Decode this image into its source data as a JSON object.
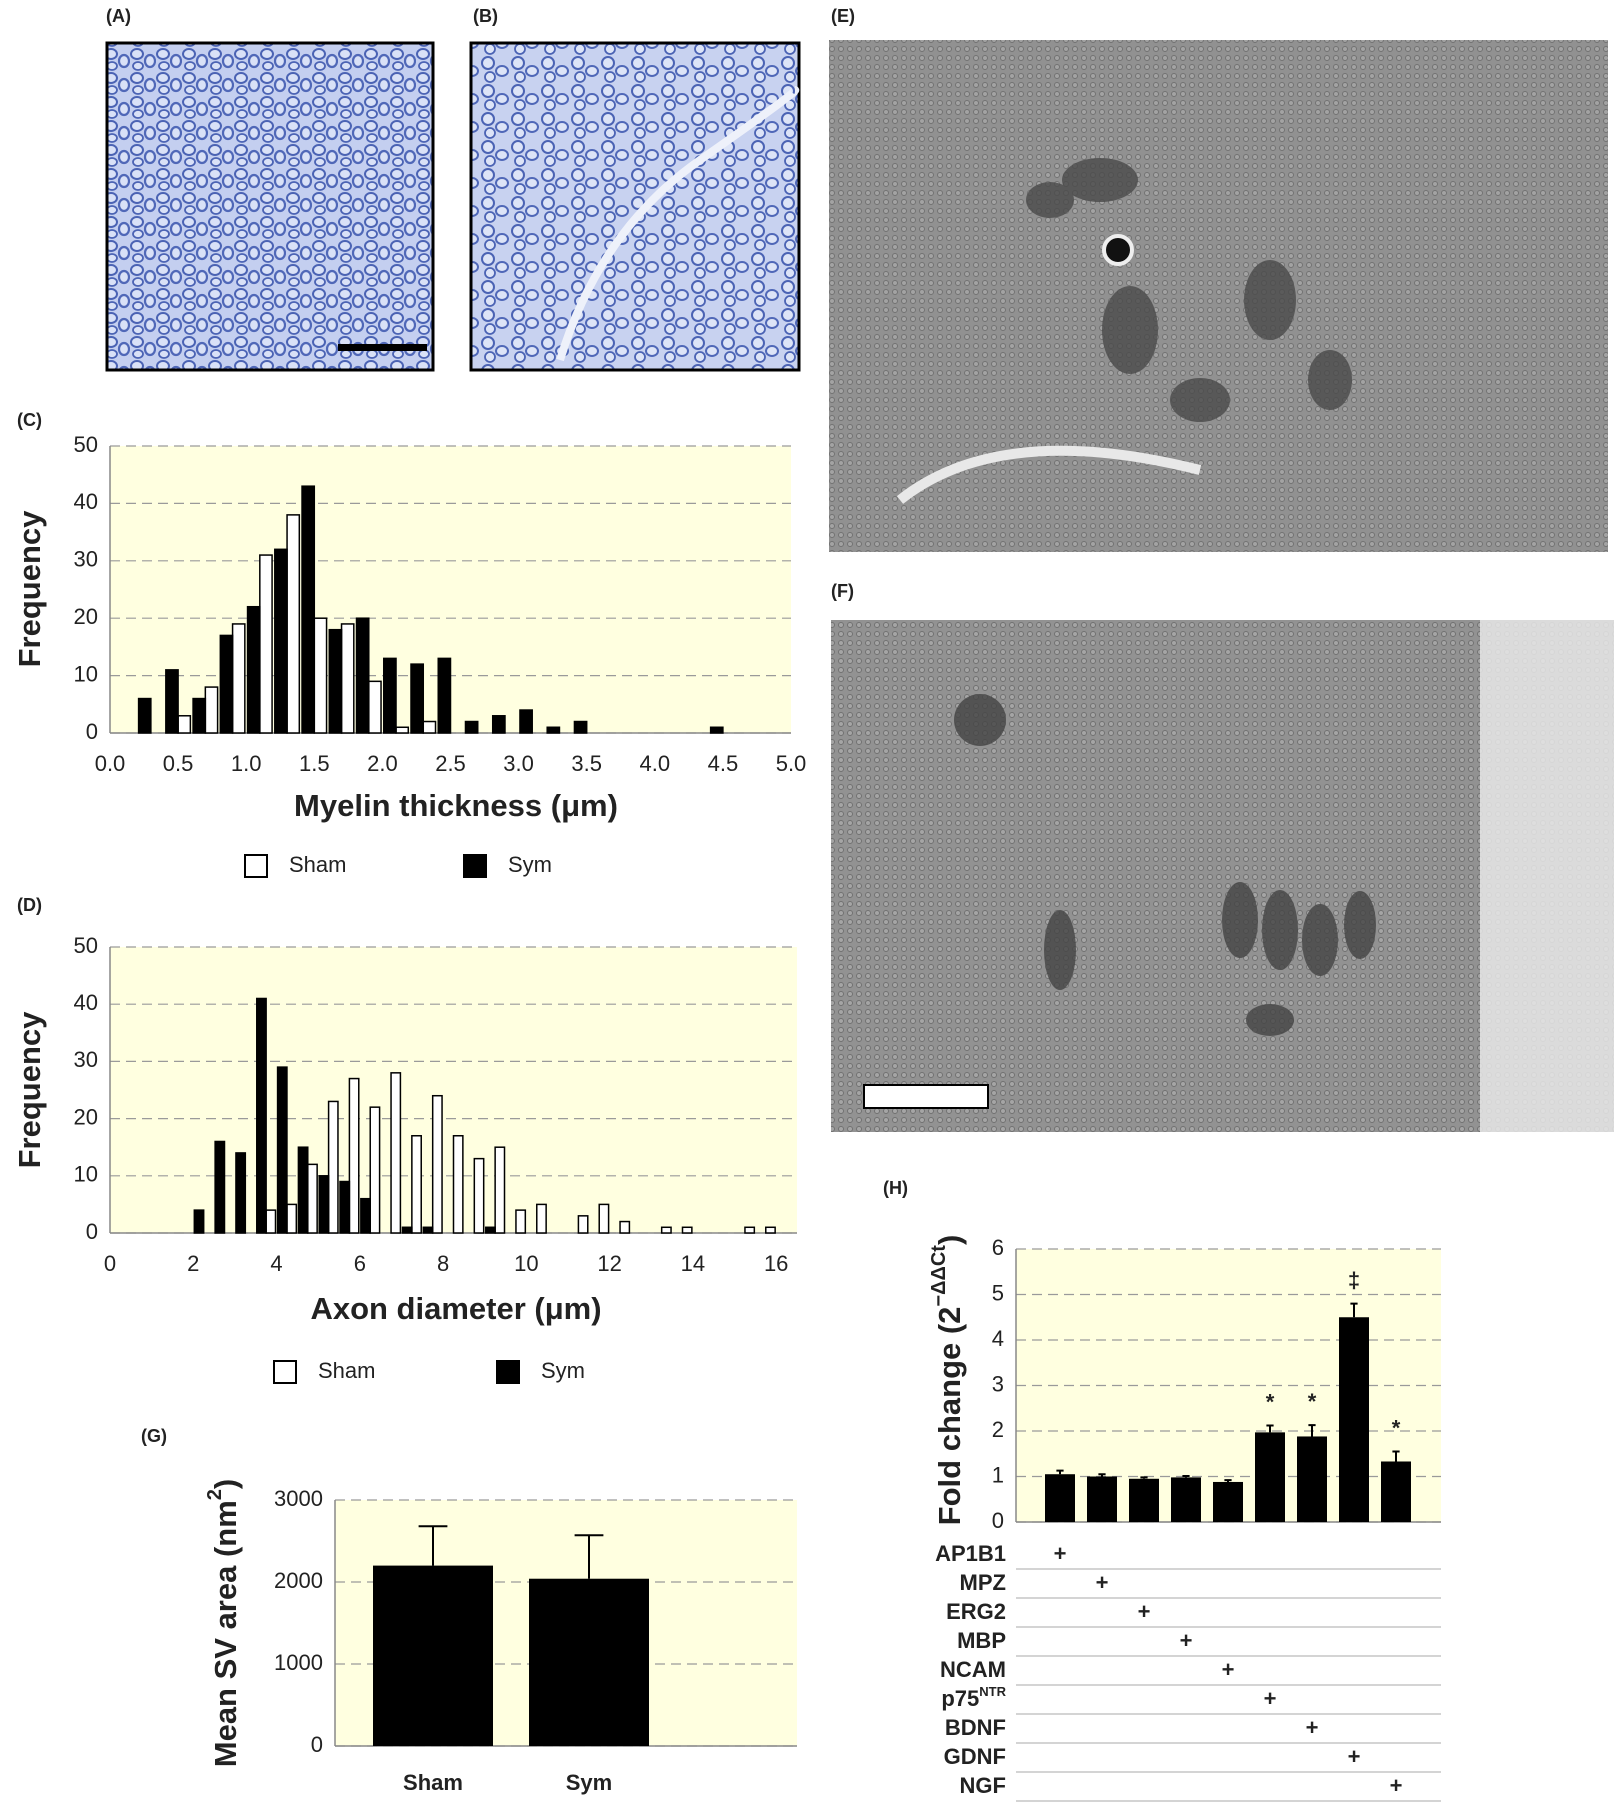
{
  "image_panels": [
    "(A)",
    "(B)",
    "(E)",
    "(F)"
  ],
  "chart_data": [
    {
      "type": "histogram",
      "label": "(C)",
      "xlabel": "Myelin thickness (μm)",
      "ylabel": "Frequency",
      "bins": [
        0.2,
        0.4,
        0.6,
        0.8,
        1.0,
        1.2,
        1.4,
        1.6,
        1.8,
        2.0,
        2.2,
        2.4,
        2.6,
        2.8,
        3.0,
        3.2,
        3.4,
        3.6,
        3.8,
        4.0,
        4.2,
        4.4,
        4.6
      ],
      "series": [
        {
          "name": "Sham",
          "color": "#ffffff",
          "values": [
            0,
            3,
            8,
            19,
            31,
            38,
            20,
            19,
            9,
            1,
            2,
            0,
            0,
            0,
            0,
            0,
            0,
            0,
            0,
            0,
            0,
            0
          ]
        },
        {
          "name": "Sym",
          "color": "#000000",
          "values": [
            6,
            11,
            6,
            17,
            22,
            32,
            43,
            18,
            20,
            13,
            12,
            13,
            2,
            3,
            4,
            1,
            2,
            0,
            0,
            0,
            0,
            1
          ]
        }
      ],
      "xlim": [
        0,
        5
      ],
      "ylim": [
        0,
        50
      ],
      "xticks": [
        {
          "value": 0,
          "label": "0.0"
        },
        0.5,
        {
          "value": 1,
          "label": "1.0"
        },
        1.5,
        {
          "value": 2,
          "label": "2.0"
        },
        2.5,
        {
          "value": 3,
          "label": "3.0"
        },
        3.5,
        {
          "value": 4,
          "label": "4.0"
        },
        4.5,
        {
          "value": 5,
          "label": "5.0"
        }
      ],
      "yticks": [
        0,
        10,
        20,
        30,
        40,
        50
      ],
      "grid": true,
      "background": "#ffffe0"
    },
    {
      "type": "histogram",
      "label": "(D)",
      "xlabel": "Axon diameter (μm)",
      "ylabel": "Frequency",
      "bins": [
        2.0,
        2.5,
        3.0,
        3.5,
        4.0,
        4.5,
        5.0,
        5.5,
        6.0,
        6.5,
        7.0,
        7.5,
        8.0,
        8.5,
        9.0,
        9.5,
        10.0,
        10.5,
        11.0,
        11.5,
        12.0,
        12.5,
        13.0,
        13.5,
        14.0,
        14.5,
        15.0,
        15.5,
        16.0
      ],
      "series": [
        {
          "name": "Sham",
          "color": "#ffffff",
          "values": [
            0,
            0,
            0,
            4,
            5,
            12,
            23,
            27,
            22,
            28,
            17,
            24,
            17,
            13,
            15,
            4,
            5,
            0,
            3,
            5,
            2,
            0,
            1,
            1,
            0,
            0,
            1,
            1
          ]
        },
        {
          "name": "Sym",
          "color": "#000000",
          "values": [
            4,
            16,
            14,
            41,
            29,
            15,
            10,
            9,
            6,
            0,
            1,
            1,
            0,
            0,
            1,
            0,
            0,
            0,
            0,
            0,
            0,
            0,
            0,
            0,
            0,
            0,
            0,
            0
          ]
        }
      ],
      "xlim": [
        0,
        16.5
      ],
      "ylim": [
        0,
        50
      ],
      "xticks": [
        0,
        2,
        4,
        6,
        8,
        10,
        12,
        14,
        16
      ],
      "yticks": [
        0,
        10,
        20,
        30,
        40,
        50
      ],
      "grid": true,
      "background": "#ffffe0"
    },
    {
      "type": "bar",
      "label": "(G)",
      "ylabel": {
        "text": "Mean SV area (nm",
        "sup": "2",
        "end": ")"
      },
      "categories": [
        "Sham",
        "Sym"
      ],
      "values": [
        2200,
        2040
      ],
      "errors": [
        480,
        530
      ],
      "color": "#000000",
      "ylim": [
        0,
        3000
      ],
      "yticks": [
        0,
        1000,
        2000,
        3000
      ],
      "grid": true,
      "background": "#ffffe0"
    },
    {
      "type": "bar",
      "label": "(H)",
      "ylabel": {
        "text": "Fold change (2",
        "sup": "−ΔΔCt",
        "end": ")"
      },
      "categories": [
        "AP1B1",
        "MPZ",
        "ERG2",
        "MBP",
        "NCAM",
        "p75",
        "BDNF",
        "GDNF",
        "NGF"
      ],
      "category_sup": [
        null,
        null,
        null,
        null,
        null,
        "NTR",
        null,
        null,
        null
      ],
      "values": [
        1.05,
        1.0,
        0.95,
        0.98,
        0.88,
        1.97,
        1.88,
        4.5,
        1.33
      ],
      "errors": [
        0.08,
        0.05,
        0.03,
        0.03,
        0.04,
        0.15,
        0.25,
        0.3,
        0.22
      ],
      "markers": [
        null,
        null,
        null,
        null,
        null,
        "*",
        "*",
        "‡",
        "*"
      ],
      "row_mark": "+",
      "color": "#000000",
      "ylim": [
        0,
        6
      ],
      "yticks": [
        0,
        1,
        2,
        3,
        4,
        5,
        6
      ],
      "grid": true,
      "background": "#ffffe0"
    }
  ]
}
